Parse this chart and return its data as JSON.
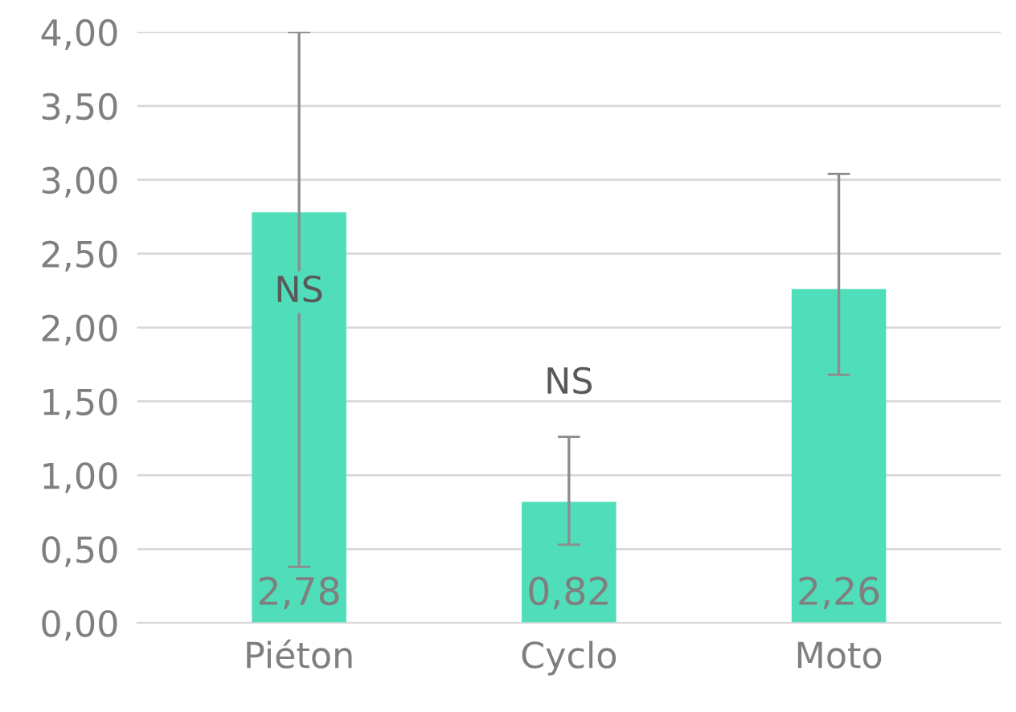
{
  "chart_data": {
    "type": "bar",
    "categories": [
      "Piéton",
      "Cyclo",
      "Moto"
    ],
    "values": [
      2.78,
      0.82,
      2.26
    ],
    "color": "#50ddb9",
    "errors": [
      [
        0.38,
        4.0
      ],
      [
        0.53,
        1.26
      ],
      [
        1.68,
        3.04
      ]
    ],
    "value_labels": [
      "2,78",
      "0,82",
      "2,26"
    ],
    "annotations": [
      "NS",
      "NS"
    ],
    "ylim": [
      0,
      4
    ],
    "yticks": [
      {
        "value": 0,
        "label": "0,00"
      },
      {
        "value": 0.5,
        "label": "0,50"
      },
      {
        "value": 1,
        "label": "1,00"
      },
      {
        "value": 1.5,
        "label": "1,50"
      },
      {
        "value": 2,
        "label": "2,00"
      },
      {
        "value": 2.5,
        "label": "2,50"
      },
      {
        "value": 3,
        "label": "3,00"
      },
      {
        "value": 3.5,
        "label": "3,50"
      },
      {
        "value": 4,
        "label": "4,00"
      }
    ],
    "grid": "y",
    "legend": false
  }
}
